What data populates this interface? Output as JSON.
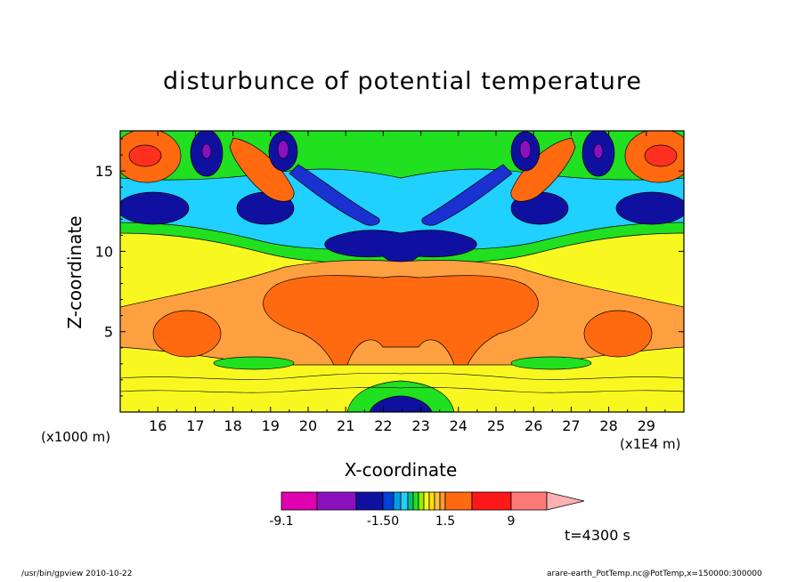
{
  "chart_data": {
    "type": "heatmap",
    "title": "disturbunce of potential temperature",
    "xlabel": "X-coordinate",
    "ylabel": "Z-coordinate",
    "x_unit_left": "(x1000 m)",
    "x_unit_right": "(x1E4 m)",
    "xlim": [
      15.0,
      30.0
    ],
    "ylim": [
      0.0,
      17.5
    ],
    "x_ticks": [
      16,
      17,
      18,
      19,
      20,
      21,
      22,
      23,
      24,
      25,
      26,
      27,
      28,
      29
    ],
    "y_ticks": [
      5,
      10,
      15
    ],
    "colorbar": {
      "labels": [
        "-9.1",
        "-1.50",
        "1.5",
        "9"
      ],
      "levels": [
        -9.1,
        -6,
        -4,
        -1.5,
        -1.2,
        -0.9,
        -0.6,
        -0.3,
        0,
        0.3,
        0.6,
        0.9,
        1.2,
        1.5,
        4,
        6,
        9
      ],
      "colors": [
        "#e000b0",
        "#8a10c0",
        "#1010a0",
        "#0040d8",
        "#00a0e0",
        "#20d0ff",
        "#00c080",
        "#20e020",
        "#90f000",
        "#f8f820",
        "#ffe000",
        "#ffc040",
        "#ff9a30",
        "#ff6a10",
        "#ff1818",
        "#ff7878",
        "#ffb0b0"
      ]
    },
    "time_label": "t=4300 s"
  },
  "colors": {
    "background": "#f8f820",
    "orange": "#ff6a10",
    "light_orange": "#ffa040",
    "red": "#ff3020",
    "green": "#20e020",
    "cyan": "#20d0ff",
    "blue": "#1010a0",
    "mid_blue": "#1a30d0",
    "purple": "#8a10c0"
  },
  "footer": {
    "left": "/usr/bin/gpview   2010-10-22",
    "right": "arare-earth_PotTemp.nc@PotTemp,x=150000:300000"
  }
}
